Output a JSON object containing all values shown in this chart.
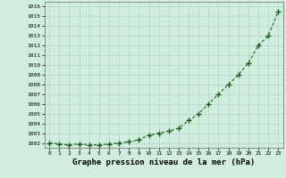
{
  "x": [
    0,
    1,
    2,
    3,
    4,
    5,
    6,
    7,
    8,
    9,
    10,
    11,
    12,
    13,
    14,
    15,
    16,
    17,
    18,
    19,
    20,
    21,
    22,
    23
  ],
  "y": [
    1002.0,
    1001.9,
    1001.8,
    1001.9,
    1001.8,
    1001.8,
    1001.9,
    1002.0,
    1002.1,
    1002.3,
    1002.8,
    1003.0,
    1003.2,
    1003.5,
    1004.3,
    1005.0,
    1006.0,
    1007.0,
    1008.0,
    1009.0,
    1010.2,
    1012.0,
    1013.0,
    1015.5
  ],
  "ylim": [
    1001.5,
    1016.5
  ],
  "yticks": [
    1002,
    1003,
    1004,
    1005,
    1006,
    1007,
    1008,
    1009,
    1010,
    1011,
    1012,
    1013,
    1014,
    1015,
    1016
  ],
  "xlim": [
    -0.5,
    23.5
  ],
  "xticks": [
    0,
    1,
    2,
    3,
    4,
    5,
    6,
    7,
    8,
    9,
    10,
    11,
    12,
    13,
    14,
    15,
    16,
    17,
    18,
    19,
    20,
    21,
    22,
    23
  ],
  "xlabel": "Graphe pression niveau de la mer (hPa)",
  "line_color": "#1a5c1a",
  "marker": "+",
  "marker_size": 4,
  "background_color": "#d0ede0",
  "grid_color": "#b0d8c0",
  "tick_fontsize": 4.5,
  "xlabel_fontsize": 6.5,
  "line_width": 0.8
}
